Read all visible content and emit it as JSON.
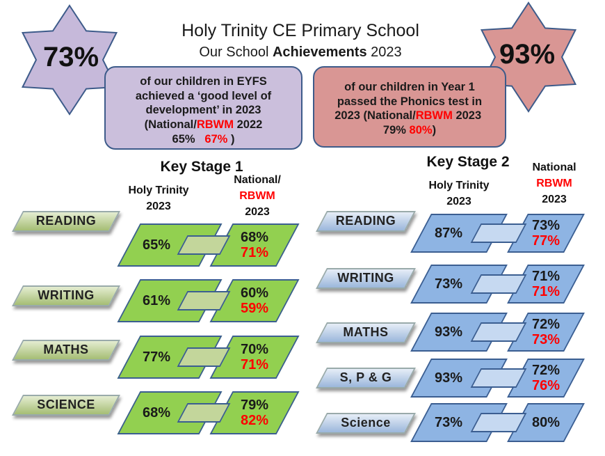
{
  "header": {
    "school": "Holy Trinity CE Primary School",
    "subtitle": "Our School",
    "subtitle_bold": "Achievements",
    "year": "2023"
  },
  "eyfs": {
    "star": "73%",
    "text": "of our children in EYFS achieved a ‘good level of development’ in 2023",
    "national_label": "(National/",
    "rbwm_label": "RBWM",
    "compare_year": "2022",
    "national": "65%",
    "rbwm": "67%",
    "close": ")"
  },
  "phonics": {
    "star": "93%",
    "text": "of our children in Year 1 passed the Phonics test in 2023",
    "national_label": "(National/",
    "rbwm_label": "RBWM",
    "compare_year": "2023",
    "national": "79%",
    "rbwm": "80%",
    "close": ")"
  },
  "key_stage_1": {
    "title": "Key Stage 1",
    "school_header": [
      "Holy Trinity",
      "2023"
    ],
    "national_header": [
      "National/",
      "RBWM",
      "2023"
    ],
    "rows": [
      {
        "subject": "READING",
        "school": "65%",
        "national": "68%",
        "rbwm": "71%"
      },
      {
        "subject": "WRITING",
        "school": "61%",
        "national": "60%",
        "rbwm": "59%"
      },
      {
        "subject": "MATHS",
        "school": "77%",
        "national": "70%",
        "rbwm": "71%"
      },
      {
        "subject": "SCIENCE",
        "school": "68%",
        "national": "79%",
        "rbwm": "82%"
      }
    ]
  },
  "key_stage_2": {
    "title": "Key Stage 2",
    "school_header": [
      "Holy Trinity",
      "2023"
    ],
    "national_header": [
      "National",
      "RBWM",
      "2023"
    ],
    "rows": [
      {
        "subject": "READING",
        "school": "87%",
        "national": "73%",
        "rbwm": "77%"
      },
      {
        "subject": "WRITING",
        "school": "73%",
        "national": "71%",
        "rbwm": "71%"
      },
      {
        "subject": "MATHS",
        "school": "93%",
        "national": "72%",
        "rbwm": "73%"
      },
      {
        "subject": "S, P & G",
        "school": "93%",
        "national": "72%",
        "rbwm": "76%"
      },
      {
        "subject": "Science",
        "school": "73%",
        "national": "80%"
      }
    ]
  }
}
